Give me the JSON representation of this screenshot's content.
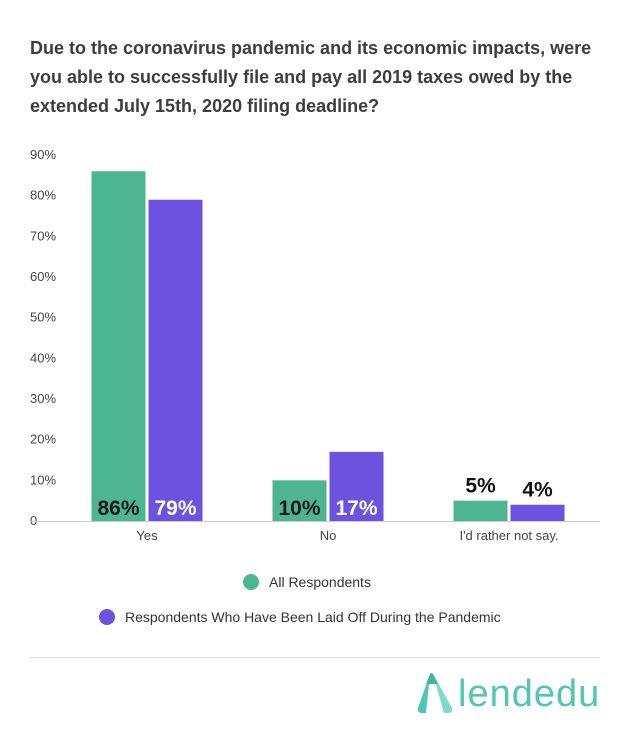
{
  "title": "Due to the coronavirus pandemic and its economic impacts, were you able to successfully file and pay all 2019 taxes owed by the extended July 15th, 2020 filing deadline?",
  "chart_data": {
    "type": "bar",
    "categories": [
      "Yes",
      "No",
      "I'd rather not say."
    ],
    "series": [
      {
        "name": "All Respondents",
        "values": [
          86,
          10,
          5
        ],
        "labels": [
          "86%",
          "10%",
          "5%"
        ],
        "color": "#4db592"
      },
      {
        "name": "Respondents Who Have Been Laid Off During the Pandemic",
        "values": [
          79,
          17,
          4
        ],
        "labels": [
          "79%",
          "17%",
          "4%"
        ],
        "color": "#6d52e0"
      }
    ],
    "yticks": [
      "0",
      "10%",
      "20%",
      "30%",
      "40%",
      "50%",
      "60%",
      "70%",
      "80%",
      "90%"
    ],
    "ylim": [
      0,
      90
    ],
    "grid": false,
    "legend_position": "bottom"
  },
  "logo": {
    "text": "lendedu",
    "color": "#4fc7b4"
  }
}
